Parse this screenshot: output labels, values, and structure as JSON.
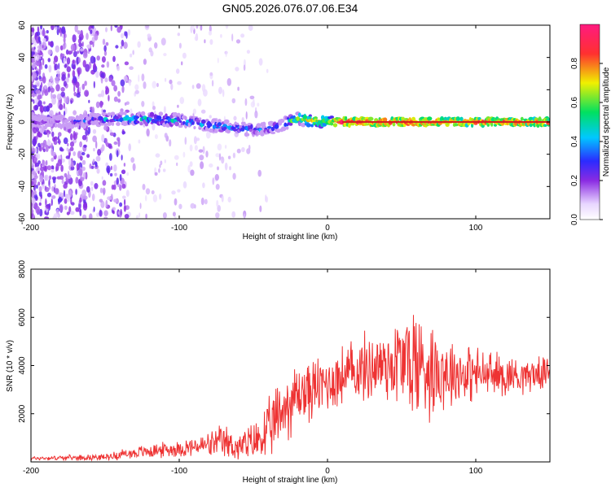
{
  "title": "GN05.2026.076.07.06.E34",
  "colors": {
    "snr_line": "#ee3333",
    "ridge_center": "#d42020"
  },
  "chart_data": [
    {
      "type": "heatmap",
      "xlabel": "Height of straight line (km)",
      "ylabel": "Frequency (Hz)",
      "xlim": [
        -200,
        150
      ],
      "ylim": [
        -60,
        60
      ],
      "xticks": [
        -200,
        -100,
        0,
        100
      ],
      "yticks": [
        -60,
        -40,
        -20,
        0,
        20,
        40,
        60
      ],
      "colorbar": {
        "label": "Normalized spectral amplitude",
        "range": [
          0,
          1
        ],
        "ticks": [
          0.0,
          0.2,
          0.4,
          0.6,
          0.8
        ],
        "palette": [
          "#f2e6ff",
          "#8a2be2",
          "#2b2bff",
          "#00c8ff",
          "#00e060",
          "#f0f000",
          "#ff3030",
          "#ff1a80"
        ]
      },
      "ridge": {
        "x": [
          -200,
          -180,
          -160,
          -140,
          -120,
          -100,
          -80,
          -60,
          -45,
          -35,
          -20,
          -10,
          0,
          10,
          50,
          100,
          150
        ],
        "frequency": [
          0,
          0,
          1,
          2,
          2,
          1,
          -2,
          -4,
          -5,
          -3,
          2,
          1,
          0,
          0,
          0,
          0,
          0
        ],
        "amplitude": [
          0.15,
          0.2,
          0.3,
          0.4,
          0.45,
          0.45,
          0.4,
          0.35,
          0.3,
          0.3,
          0.6,
          0.7,
          0.65,
          0.9,
          0.85,
          0.8,
          0.8
        ]
      },
      "noise_region_x": [
        -200,
        -40
      ]
    },
    {
      "type": "line",
      "xlabel": "Height of straight line (km)",
      "ylabel": "SNR (10 * v/v)",
      "xlim": [
        -200,
        150
      ],
      "ylim": [
        0,
        8000
      ],
      "xticks": [
        -200,
        -100,
        0,
        100
      ],
      "yticks": [
        2000,
        4000,
        6000,
        8000
      ],
      "envelope": {
        "x": [
          -200,
          -150,
          -140,
          -120,
          -100,
          -80,
          -70,
          -60,
          -50,
          -40,
          -30,
          -20,
          -10,
          0,
          20,
          40,
          55,
          60,
          70,
          90,
          110,
          130,
          150
        ],
        "mean": [
          150,
          200,
          300,
          450,
          550,
          700,
          800,
          600,
          800,
          1200,
          2200,
          2800,
          3000,
          3300,
          3800,
          4100,
          4200,
          4100,
          3900,
          3700,
          3600,
          3600,
          3700
        ],
        "amp": [
          100,
          150,
          250,
          350,
          400,
          600,
          900,
          700,
          1000,
          1500,
          1800,
          1700,
          1500,
          1500,
          1600,
          2000,
          2800,
          3200,
          2400,
          1500,
          1200,
          900,
          700
        ]
      }
    }
  ]
}
